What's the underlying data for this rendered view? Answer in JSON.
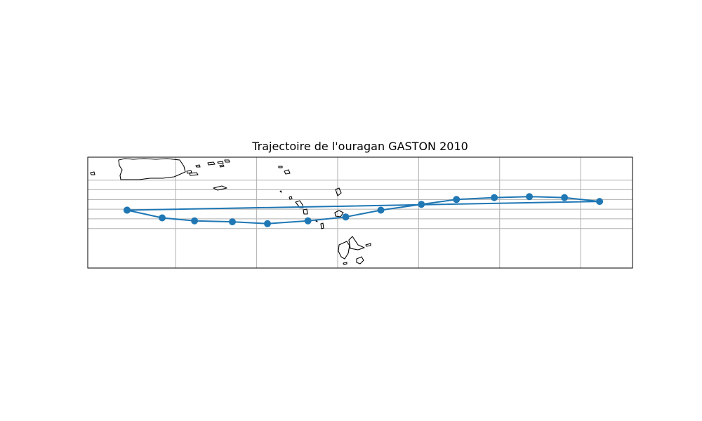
{
  "title": "Trajectoire de l'ouragan GASTON 2010",
  "colors": {
    "track": "#1f77b4",
    "coastline": "#000000",
    "grid": "#b0b0b0",
    "frame": "#000000",
    "background": "#ffffff"
  },
  "map": {
    "projection": "PlateCarree",
    "gridlines": true,
    "coastlines": true
  },
  "chart_data": {
    "type": "line",
    "title": "Trajectoire de l'ouragan GASTON 2010",
    "xlabel": "",
    "ylabel": "",
    "series": [
      {
        "marker": "circle",
        "points": [
          {
            "lon": -69.8,
            "lat": 15.9
          },
          {
            "lon": -68.5,
            "lat": 15.1
          },
          {
            "lon": -67.3,
            "lat": 14.8
          },
          {
            "lon": -65.9,
            "lat": 14.7
          },
          {
            "lon": -64.6,
            "lat": 14.5
          },
          {
            "lon": -63.1,
            "lat": 14.8
          },
          {
            "lon": -61.7,
            "lat": 15.2
          },
          {
            "lon": -60.4,
            "lat": 15.9
          },
          {
            "lon": -58.9,
            "lat": 16.5
          },
          {
            "lon": -57.6,
            "lat": 17.0
          },
          {
            "lon": -56.2,
            "lat": 17.2
          },
          {
            "lon": -54.9,
            "lat": 17.3
          },
          {
            "lon": -53.6,
            "lat": 17.2
          },
          {
            "lon": -52.3,
            "lat": 16.8
          },
          {
            "lon": -69.8,
            "lat": 15.9
          }
        ]
      }
    ]
  }
}
